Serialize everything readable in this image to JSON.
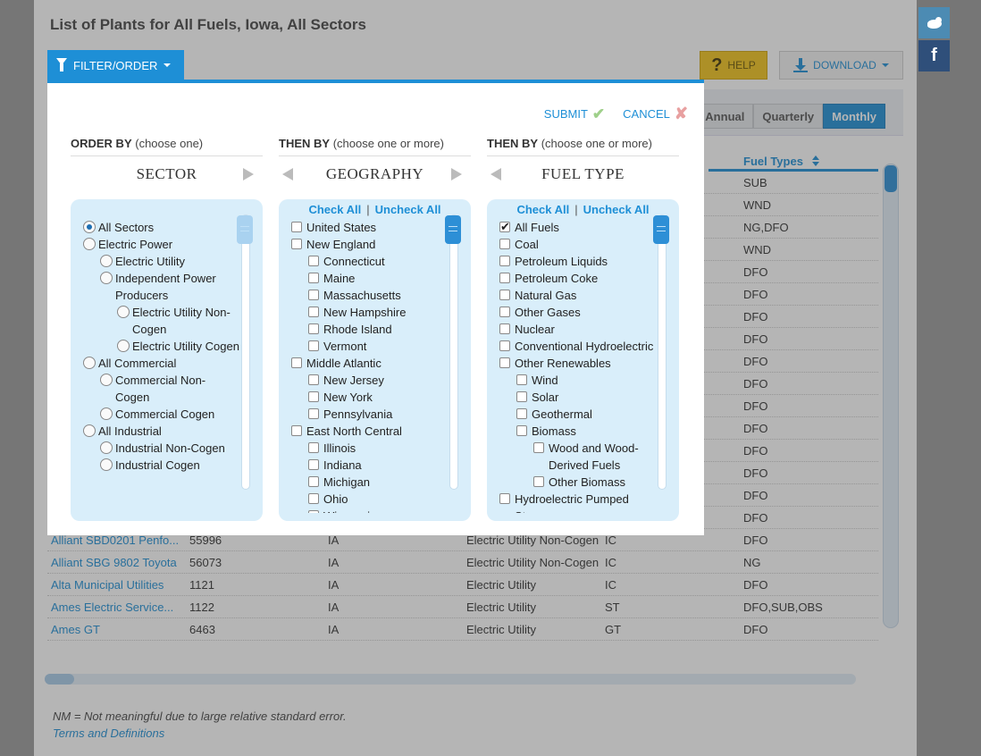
{
  "page": {
    "title": "List of Plants for All Fuels, Iowa, All Sectors",
    "help_label": "HELP",
    "download_label": "DOWNLOAD",
    "frequency": [
      "Annual",
      "Quarterly",
      "Monthly"
    ],
    "active_frequency": "Monthly",
    "fuel_header": "Fuel Types",
    "rows": [
      {
        "name": "",
        "id": "",
        "state": "",
        "sector": "",
        "prime": "",
        "fuel": "SUB"
      },
      {
        "name": "",
        "id": "",
        "state": "",
        "sector": "",
        "prime": "",
        "fuel": "WND"
      },
      {
        "name": "",
        "id": "",
        "state": "",
        "sector": "",
        "prime": "",
        "fuel": "NG,DFO"
      },
      {
        "name": "",
        "id": "",
        "state": "",
        "sector": "",
        "prime": "",
        "fuel": "WND"
      },
      {
        "name": "",
        "id": "",
        "state": "",
        "sector": "",
        "prime": "",
        "fuel": "DFO"
      },
      {
        "name": "",
        "id": "",
        "state": "",
        "sector": "",
        "prime": "",
        "fuel": "DFO"
      },
      {
        "name": "",
        "id": "",
        "state": "",
        "sector": "",
        "prime": "",
        "fuel": "DFO"
      },
      {
        "name": "",
        "id": "",
        "state": "",
        "sector": "",
        "prime": "",
        "fuel": "DFO"
      },
      {
        "name": "",
        "id": "",
        "state": "",
        "sector": "",
        "prime": "",
        "fuel": "DFO"
      },
      {
        "name": "",
        "id": "",
        "state": "",
        "sector": "",
        "prime": "",
        "fuel": "DFO"
      },
      {
        "name": "",
        "id": "",
        "state": "",
        "sector": "",
        "prime": "",
        "fuel": "DFO"
      },
      {
        "name": "",
        "id": "",
        "state": "",
        "sector": "",
        "prime": "",
        "fuel": "DFO"
      },
      {
        "name": "",
        "id": "",
        "state": "",
        "sector": "",
        "prime": "",
        "fuel": "DFO"
      },
      {
        "name": "",
        "id": "",
        "state": "",
        "sector": "",
        "prime": "",
        "fuel": "DFO"
      },
      {
        "name": "",
        "id": "",
        "state": "",
        "sector": "",
        "prime": "",
        "fuel": "DFO"
      },
      {
        "name": "",
        "id": "",
        "state": "",
        "sector": "",
        "prime": "",
        "fuel": "DFO"
      },
      {
        "name": "Alliant SBD0201 Penfo...",
        "id": "55996",
        "state": "IA",
        "sector": "Electric Utility Non-Cogen",
        "prime": "IC",
        "fuel": "DFO"
      },
      {
        "name": "Alliant SBG 9802 Toyota",
        "id": "56073",
        "state": "IA",
        "sector": "Electric Utility Non-Cogen",
        "prime": "IC",
        "fuel": "NG"
      },
      {
        "name": "Alta Municipal Utilities",
        "id": "1121",
        "state": "IA",
        "sector": "Electric Utility",
        "prime": "IC",
        "fuel": "DFO"
      },
      {
        "name": "Ames Electric Service...",
        "id": "1122",
        "state": "IA",
        "sector": "Electric Utility",
        "prime": "ST",
        "fuel": "DFO,SUB,OBS"
      },
      {
        "name": "Ames GT",
        "id": "6463",
        "state": "IA",
        "sector": "Electric Utility",
        "prime": "GT",
        "fuel": "DFO"
      }
    ],
    "footnote": "NM = Not meaningful due to large relative standard error.",
    "terms_link": "Terms and Definitions"
  },
  "social": {
    "twitter": "twitter-icon",
    "facebook": "f"
  },
  "modal": {
    "tab_label": "FILTER/ORDER",
    "submit_label": "SUBMIT",
    "cancel_label": "CANCEL",
    "columns": [
      {
        "head_bold": "ORDER BY",
        "head_rest": "(choose one)",
        "title": "SECTOR"
      },
      {
        "head_bold": "THEN BY",
        "head_rest": "(choose one or more)",
        "title": "GEOGRAPHY"
      },
      {
        "head_bold": "THEN BY",
        "head_rest": "(choose one or more)",
        "title": "FUEL TYPE"
      }
    ],
    "check_all": "Check All",
    "uncheck_all": "Uncheck All",
    "sep": "|",
    "sector_items": [
      {
        "label": "All Sectors",
        "level": 0,
        "checked": true
      },
      {
        "label": "Electric Power",
        "level": 0,
        "checked": false
      },
      {
        "label": "Electric Utility",
        "level": 1,
        "checked": false
      },
      {
        "label": "Independent Power Producers",
        "level": 1,
        "checked": false
      },
      {
        "label": "Electric Utility Non-Cogen",
        "level": 2,
        "checked": false
      },
      {
        "label": "Electric Utility Cogen",
        "level": 2,
        "checked": false
      },
      {
        "label": "All Commercial",
        "level": 0,
        "checked": false
      },
      {
        "label": "Commercial Non-Cogen",
        "level": 1,
        "checked": false
      },
      {
        "label": "Commercial Cogen",
        "level": 1,
        "checked": false
      },
      {
        "label": "All Industrial",
        "level": 0,
        "checked": false
      },
      {
        "label": "Industrial Non-Cogen",
        "level": 1,
        "checked": false
      },
      {
        "label": "Industrial Cogen",
        "level": 1,
        "checked": false
      }
    ],
    "geo_items": [
      {
        "label": "United States",
        "level": 0,
        "checked": false
      },
      {
        "label": "New England",
        "level": 0,
        "checked": false
      },
      {
        "label": "Connecticut",
        "level": 1,
        "checked": false
      },
      {
        "label": "Maine",
        "level": 1,
        "checked": false
      },
      {
        "label": "Massachusetts",
        "level": 1,
        "checked": false
      },
      {
        "label": "New Hampshire",
        "level": 1,
        "checked": false
      },
      {
        "label": "Rhode Island",
        "level": 1,
        "checked": false
      },
      {
        "label": "Vermont",
        "level": 1,
        "checked": false
      },
      {
        "label": "Middle Atlantic",
        "level": 0,
        "checked": false
      },
      {
        "label": "New Jersey",
        "level": 1,
        "checked": false
      },
      {
        "label": "New York",
        "level": 1,
        "checked": false
      },
      {
        "label": "Pennsylvania",
        "level": 1,
        "checked": false
      },
      {
        "label": "East North Central",
        "level": 0,
        "checked": false
      },
      {
        "label": "Illinois",
        "level": 1,
        "checked": false
      },
      {
        "label": "Indiana",
        "level": 1,
        "checked": false
      },
      {
        "label": "Michigan",
        "level": 1,
        "checked": false
      },
      {
        "label": "Ohio",
        "level": 1,
        "checked": false
      },
      {
        "label": "Wisconsin",
        "level": 1,
        "checked": false
      }
    ],
    "fuel_items": [
      {
        "label": "All Fuels",
        "level": 0,
        "checked": true
      },
      {
        "label": "Coal",
        "level": 0,
        "checked": false
      },
      {
        "label": "Petroleum Liquids",
        "level": 0,
        "checked": false
      },
      {
        "label": "Petroleum Coke",
        "level": 0,
        "checked": false
      },
      {
        "label": "Natural Gas",
        "level": 0,
        "checked": false
      },
      {
        "label": "Other Gases",
        "level": 0,
        "checked": false
      },
      {
        "label": "Nuclear",
        "level": 0,
        "checked": false
      },
      {
        "label": "Conventional Hydroelectric",
        "level": 0,
        "checked": false
      },
      {
        "label": "Other Renewables",
        "level": 0,
        "checked": false
      },
      {
        "label": "Wind",
        "level": 1,
        "checked": false
      },
      {
        "label": "Solar",
        "level": 1,
        "checked": false
      },
      {
        "label": "Geothermal",
        "level": 1,
        "checked": false
      },
      {
        "label": "Biomass",
        "level": 1,
        "checked": false
      },
      {
        "label": "Wood and Wood-Derived Fuels",
        "level": 2,
        "checked": false
      },
      {
        "label": "Other Biomass",
        "level": 2,
        "checked": false
      },
      {
        "label": "Hydroelectric Pumped Storage",
        "level": 0,
        "checked": false
      }
    ]
  }
}
